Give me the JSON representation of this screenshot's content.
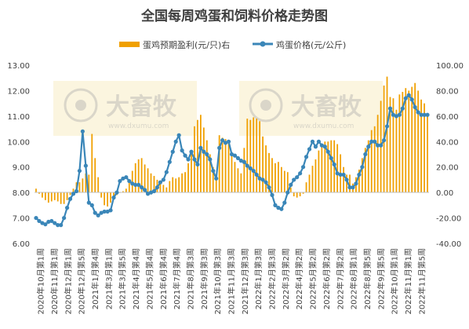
{
  "chart_data": {
    "type": "bar+line",
    "title": "全国每周鸡蛋和饲料价格走势图",
    "legend": {
      "position": "top",
      "bar_label": "蛋鸡预期盈利(元/只)右",
      "line_label": "鸡蛋价格(元/公斤)"
    },
    "watermark": {
      "brand": "大畜牧",
      "url": "www.dxumu.com"
    },
    "y_left": {
      "min": 6.0,
      "max": 13.0,
      "ticks": [
        "13.00",
        "12.00",
        "11.00",
        "10.00",
        "9.00",
        "8.00",
        "7.00",
        "6.00"
      ]
    },
    "y_right": {
      "min": -40,
      "max": 100,
      "ticks": [
        "100.00",
        "80.00",
        "60.00",
        "40.00",
        "20.00",
        "0.00",
        "-20.00",
        "-40.00"
      ]
    },
    "x_tick_labels": [
      "2020年10月第1周",
      "2020年11月第1周",
      "2020年12月第1周",
      "2020年12月第5周",
      "2021年1月第4周",
      "2021年3月第1周",
      "2021年3月第5周",
      "2021年4月第4周",
      "2021年5月第4周",
      "2021年6月第4周",
      "2021年7月第4周",
      "2021年8月第3周",
      "2021年9月第3周",
      "2021年10月第3周",
      "2021年11月第3周",
      "2021年12月第3周",
      "2022年1月第3周",
      "2022年2月第3周",
      "2022年3月第2周",
      "2022年4月第2周",
      "2022年5月第2周",
      "2022年6月第2周",
      "2022年7月第2周",
      "2022年8月第1周",
      "2022年8月第5周",
      "2022年9月第5周",
      "2022年10月第1周",
      "2022年11月第1周",
      "2022年11月第5周"
    ],
    "series": [
      {
        "name": "蛋鸡预期盈利(元/只)右",
        "type": "bar",
        "axis": "right",
        "color": "#f0a000",
        "values": [
          3,
          -1,
          -4,
          -6,
          -8,
          -7,
          -6,
          -7,
          -9,
          -9,
          -6,
          -2,
          3,
          8,
          8,
          11,
          15,
          14,
          46,
          27,
          12,
          -4,
          -10,
          -11,
          -8,
          -4,
          -2,
          0,
          1,
          3,
          9,
          17,
          23,
          26,
          27,
          22,
          19,
          15,
          13,
          10,
          7,
          6,
          4,
          9,
          12,
          11,
          12,
          15,
          16,
          23,
          31,
          52,
          57,
          61,
          51,
          41,
          30,
          20,
          13,
          45,
          43,
          42,
          40,
          30,
          24,
          19,
          15,
          35,
          58,
          57,
          59,
          58,
          56,
          44,
          37,
          31,
          27,
          23,
          24,
          20,
          17,
          16,
          4,
          -3,
          -4,
          -3,
          -1,
          8,
          14,
          21,
          26,
          33,
          37,
          40,
          40,
          41,
          41,
          38,
          30,
          20,
          14,
          14,
          7,
          12,
          18,
          27,
          35,
          41,
          49,
          52,
          61,
          72,
          84,
          91,
          75,
          74,
          65,
          77,
          79,
          82,
          80,
          83,
          86,
          80,
          73,
          70,
          60
        ]
      },
      {
        "name": "鸡蛋价格(元/公斤)",
        "type": "line",
        "axis": "left",
        "color": "#3a86b8",
        "values": [
          7.0,
          6.88,
          6.8,
          6.75,
          6.85,
          6.88,
          6.8,
          6.72,
          6.72,
          7.0,
          7.4,
          7.75,
          7.95,
          8.05,
          8.85,
          10.4,
          9.05,
          7.6,
          7.5,
          7.2,
          7.1,
          7.2,
          7.25,
          7.25,
          7.3,
          7.8,
          8.0,
          8.45,
          8.55,
          8.6,
          8.45,
          8.35,
          8.3,
          8.3,
          8.2,
          8.1,
          7.95,
          8.0,
          8.05,
          8.2,
          8.4,
          8.5,
          8.8,
          9.2,
          9.6,
          10.0,
          10.25,
          9.65,
          9.45,
          9.3,
          9.6,
          9.3,
          9.1,
          9.75,
          9.6,
          9.5,
          9.3,
          8.85,
          8.55,
          9.75,
          10.05,
          9.95,
          10.0,
          9.5,
          9.45,
          9.35,
          9.25,
          9.2,
          9.05,
          8.95,
          8.85,
          8.7,
          8.55,
          8.5,
          8.4,
          8.2,
          7.9,
          7.5,
          7.4,
          7.35,
          7.6,
          8.0,
          8.3,
          8.5,
          8.6,
          8.75,
          9.0,
          9.4,
          9.7,
          10.0,
          9.8,
          10.0,
          9.85,
          9.8,
          9.6,
          9.35,
          9.1,
          8.75,
          8.7,
          8.7,
          8.5,
          8.2,
          8.2,
          8.35,
          8.7,
          9.0,
          9.5,
          9.8,
          10.0,
          10.0,
          9.85,
          9.85,
          10.05,
          10.6,
          11.3,
          11.05,
          11.0,
          11.05,
          11.3,
          11.7,
          11.82,
          11.65,
          11.35,
          11.15,
          11.05,
          11.05,
          11.05
        ]
      }
    ]
  }
}
